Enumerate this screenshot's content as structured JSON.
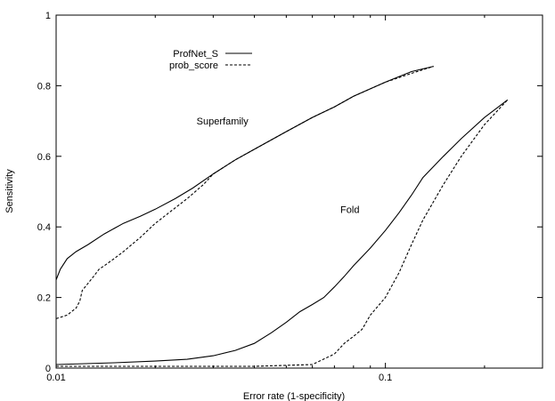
{
  "chart_data": {
    "type": "line",
    "xlabel": "Error rate (1-specificity)",
    "ylabel": "Sensitivity",
    "x_scale": "log",
    "xlim": [
      0.01,
      0.3
    ],
    "ylim": [
      0,
      1
    ],
    "x_ticks": [
      {
        "value": 0.01,
        "label": "0.01"
      },
      {
        "value": 0.1,
        "label": "0.1"
      }
    ],
    "y_ticks": [
      {
        "value": 0,
        "label": "0"
      },
      {
        "value": 0.2,
        "label": "0.2"
      },
      {
        "value": 0.4,
        "label": "0.4"
      },
      {
        "value": 0.6,
        "label": "0.6"
      },
      {
        "value": 0.8,
        "label": "0.8"
      },
      {
        "value": 1,
        "label": "1"
      }
    ],
    "legend": {
      "placement": "top-left",
      "entries": [
        {
          "name": "ProfNet_S",
          "style": "solid"
        },
        {
          "name": "prob_score",
          "style": "dashed"
        }
      ]
    },
    "annotations": [
      {
        "text": "Superfamily",
        "x": 0.032,
        "y": 0.69
      },
      {
        "text": "Fold",
        "x": 0.078,
        "y": 0.44
      }
    ],
    "series": [
      {
        "name": "ProfNet_S",
        "group": "Superfamily",
        "style": "solid",
        "x": [
          0.01,
          0.0103,
          0.0108,
          0.0115,
          0.0125,
          0.014,
          0.016,
          0.018,
          0.02,
          0.023,
          0.026,
          0.03,
          0.035,
          0.04,
          0.05,
          0.06,
          0.07,
          0.08,
          0.1,
          0.12,
          0.14
        ],
        "y": [
          0.25,
          0.28,
          0.31,
          0.33,
          0.35,
          0.38,
          0.41,
          0.43,
          0.45,
          0.48,
          0.51,
          0.55,
          0.59,
          0.62,
          0.67,
          0.71,
          0.74,
          0.77,
          0.81,
          0.84,
          0.855
        ]
      },
      {
        "name": "prob_score",
        "group": "Superfamily",
        "style": "dashed",
        "x": [
          0.01,
          0.0108,
          0.0115,
          0.0118,
          0.012,
          0.0125,
          0.013,
          0.0135,
          0.014,
          0.015,
          0.016,
          0.018,
          0.02,
          0.022,
          0.025,
          0.028,
          0.03,
          0.035,
          0.04,
          0.05,
          0.06,
          0.07,
          0.08,
          0.1,
          0.12,
          0.14
        ],
        "y": [
          0.14,
          0.15,
          0.17,
          0.19,
          0.22,
          0.24,
          0.26,
          0.28,
          0.29,
          0.31,
          0.33,
          0.37,
          0.41,
          0.44,
          0.48,
          0.52,
          0.55,
          0.59,
          0.62,
          0.67,
          0.71,
          0.74,
          0.77,
          0.81,
          0.835,
          0.855
        ]
      },
      {
        "name": "ProfNet_S",
        "group": "Fold",
        "style": "solid",
        "x": [
          0.01,
          0.015,
          0.02,
          0.025,
          0.03,
          0.035,
          0.04,
          0.045,
          0.05,
          0.055,
          0.06,
          0.065,
          0.07,
          0.075,
          0.08,
          0.09,
          0.1,
          0.11,
          0.12,
          0.13,
          0.15,
          0.17,
          0.2,
          0.235
        ],
        "y": [
          0.01,
          0.015,
          0.02,
          0.025,
          0.035,
          0.05,
          0.07,
          0.1,
          0.13,
          0.16,
          0.18,
          0.2,
          0.23,
          0.26,
          0.29,
          0.34,
          0.39,
          0.44,
          0.49,
          0.54,
          0.6,
          0.65,
          0.71,
          0.76
        ]
      },
      {
        "name": "prob_score",
        "group": "Fold",
        "style": "dashed",
        "x": [
          0.01,
          0.02,
          0.04,
          0.06,
          0.07,
          0.075,
          0.08,
          0.085,
          0.09,
          0.1,
          0.11,
          0.12,
          0.13,
          0.15,
          0.17,
          0.2,
          0.235
        ],
        "y": [
          0.005,
          0.005,
          0.005,
          0.01,
          0.04,
          0.07,
          0.09,
          0.11,
          0.15,
          0.2,
          0.27,
          0.35,
          0.42,
          0.52,
          0.6,
          0.69,
          0.76
        ]
      }
    ]
  }
}
